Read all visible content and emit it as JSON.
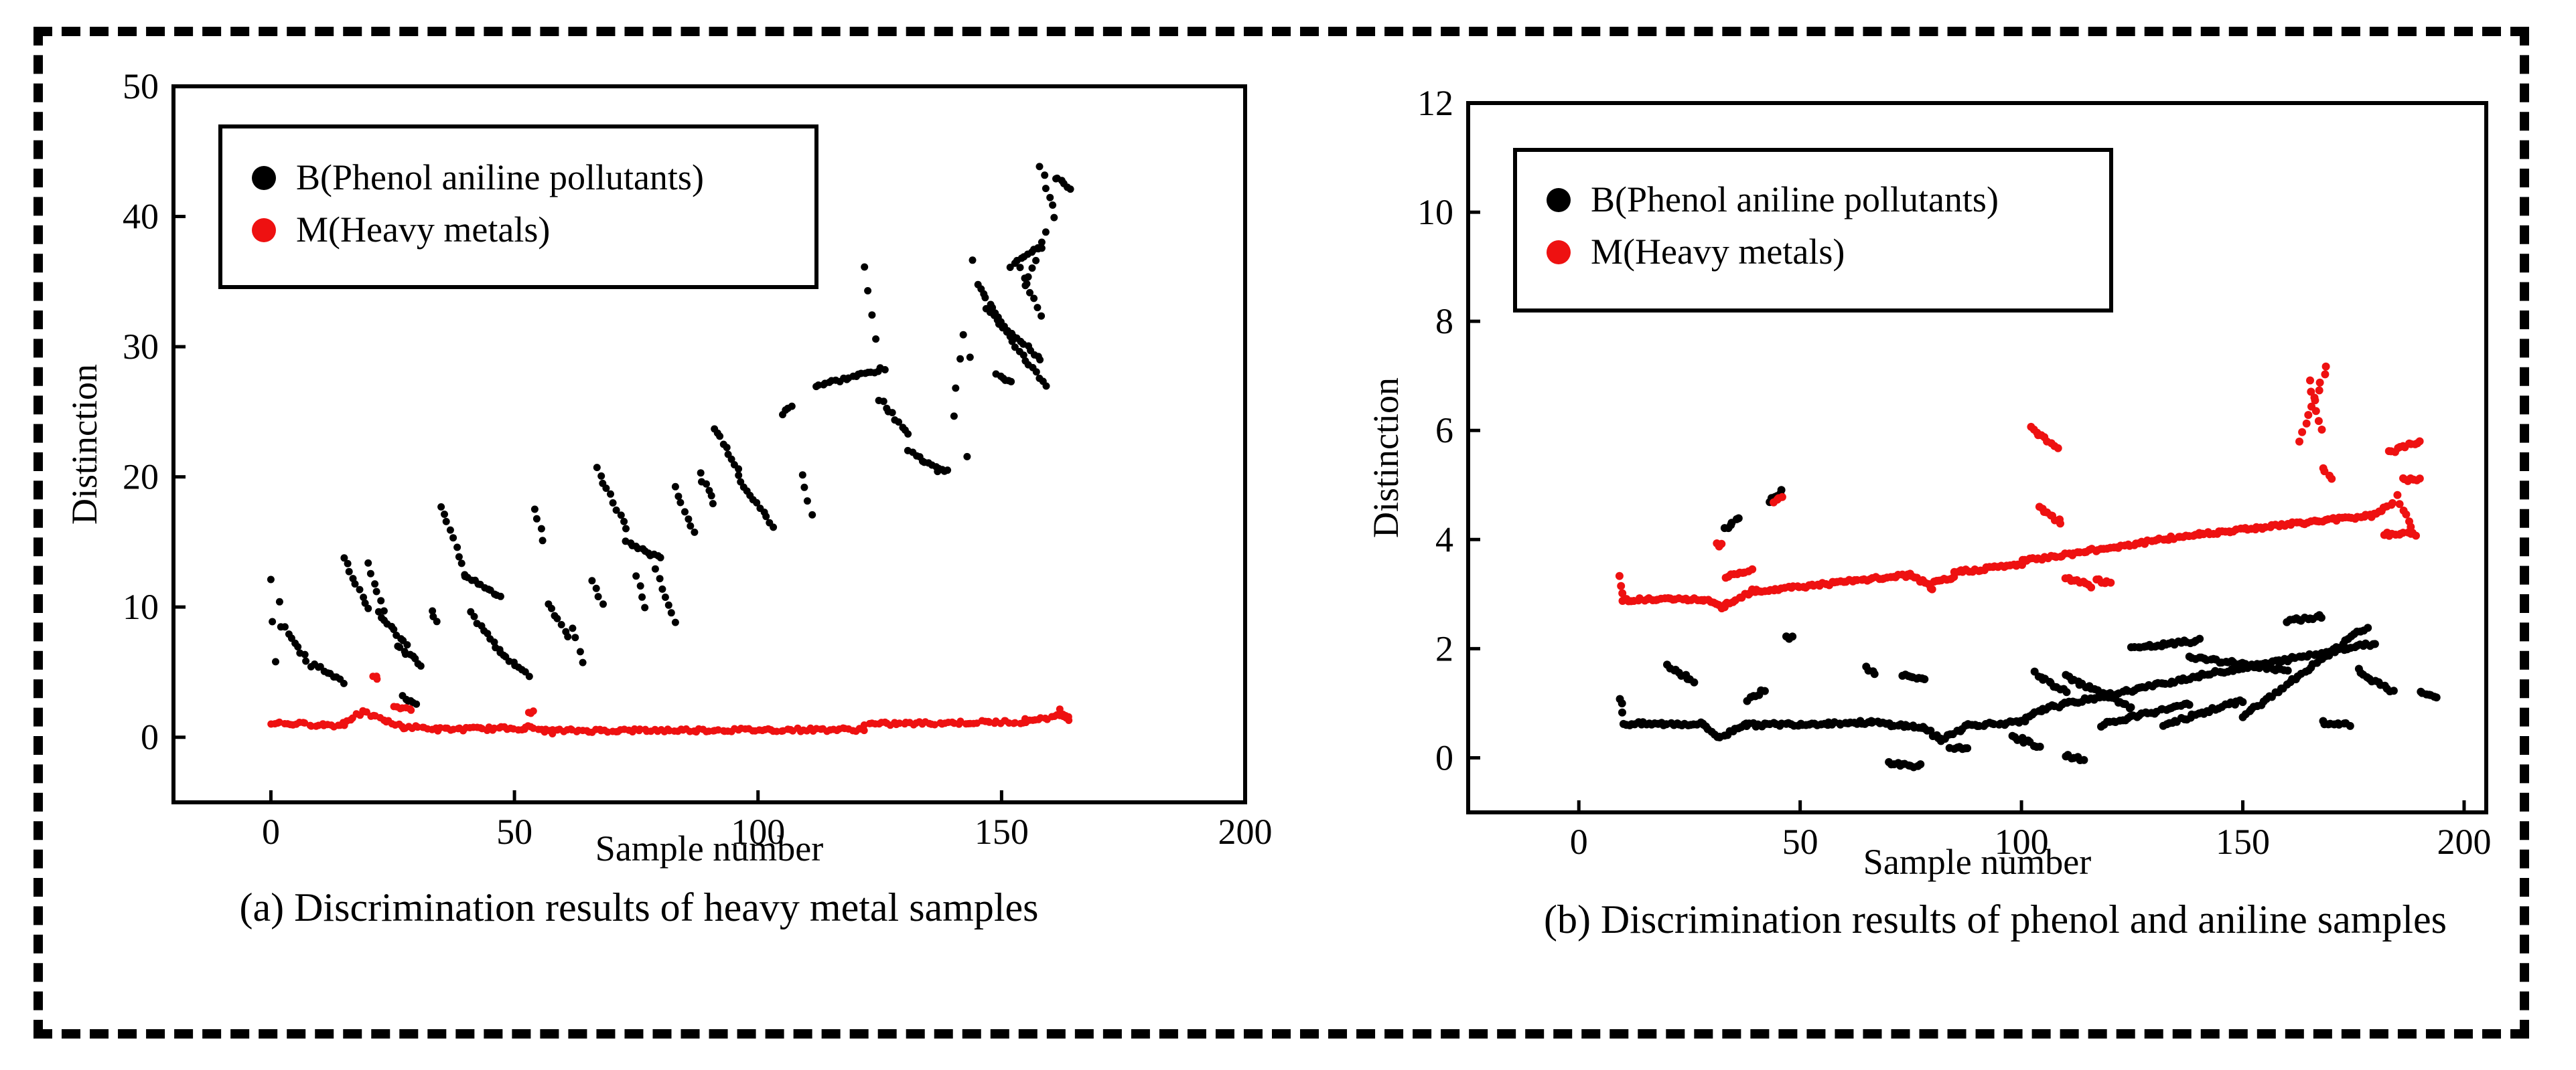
{
  "chart_data": [
    {
      "type": "scatter",
      "title": "",
      "caption": "(a) Discrimination results of heavy metal samples",
      "xlabel": "Sample number",
      "ylabel": "Distinction",
      "xlim": [
        -20,
        200
      ],
      "ylim": [
        -5,
        50
      ],
      "xticks": [
        "0",
        "50",
        "100",
        "150",
        "200"
      ],
      "yticks": [
        "0",
        "10",
        "20",
        "30",
        "40",
        "50"
      ],
      "legend": {
        "position": "top-left",
        "entries": [
          "B(Phenol aniline pollutants)",
          "M(Heavy metals)"
        ]
      },
      "series": [
        {
          "name": "B(Phenol aniline pollutants)",
          "color": "#000000",
          "segments": [
            [
              0,
              1,
              12.1,
              5.8
            ],
            [
              2,
              2,
              10.3,
              8.5
            ],
            [
              3,
              8,
              8.4,
              5.5
            ],
            [
              9,
              15,
              5.6,
              4.2
            ],
            [
              15,
              20,
              13.8,
              9.8
            ],
            [
              20,
              23,
              13.4,
              9.6
            ],
            [
              22,
              28,
              9.6,
              7.0
            ],
            [
              26,
              31,
              7.0,
              5.6
            ],
            [
              27,
              30,
              3.1,
              2.6
            ],
            [
              33,
              34,
              9.8,
              9.0
            ],
            [
              35,
              40,
              17.8,
              12.6
            ],
            [
              40,
              47,
              12.4,
              10.7
            ],
            [
              41,
              47,
              9.5,
              6.6
            ],
            [
              47,
              53,
              6.6,
              4.7
            ],
            [
              54,
              56,
              17.6,
              15.2
            ],
            [
              57,
              61,
              10.3,
              7.8
            ],
            [
              62,
              64,
              8.5,
              5.8
            ],
            [
              66,
              68,
              12.1,
              10.1
            ],
            [
              67,
              73,
              20.6,
              16.0
            ],
            [
              73,
              80,
              15.0,
              13.7
            ],
            [
              75,
              77,
              12.5,
              10.0
            ],
            [
              79,
              83,
              12.8,
              8.9
            ],
            [
              83,
              87,
              19.2,
              15.7
            ],
            [
              88,
              91,
              20.2,
              18.0
            ],
            [
              91,
              96,
              23.8,
              20.6
            ],
            [
              96,
              103,
              20.0,
              16.2
            ],
            [
              105,
              107,
              24.8,
              25.5
            ],
            [
              109,
              111,
              20.1,
              17.2
            ],
            [
              112,
              126,
              27.0,
              28.3
            ],
            [
              122,
              124,
              36.0,
              30.7
            ],
            [
              125,
              131,
              26.0,
              23.3
            ],
            [
              131,
              137,
              22.0,
              20.5
            ],
            [
              137,
              139,
              20.7,
              20.4
            ],
            [
              140,
              142,
              24.8,
              31.0
            ],
            [
              143,
              144,
              21.5,
              36.7
            ],
            [
              145,
              150,
              34.7,
              32.0
            ],
            [
              150,
              158,
              31.8,
              29.0
            ],
            [
              152,
              158,
              36.2,
              37.7
            ],
            [
              158,
              161,
              43.8,
              40.0
            ],
            [
              161,
              164,
              43.0,
              42.2
            ],
            [
              154,
              158,
              36.0,
              32.4
            ],
            [
              155,
              159,
              34.8,
              38.7
            ],
            [
              149,
              152,
              28.0,
              27.2
            ],
            [
              147,
              159,
              33.0,
              27.0
            ]
          ]
        },
        {
          "name": "M(Heavy metals)",
          "color": "#ee1111",
          "segments": [
            [
              0,
              15,
              1.1,
              0.9
            ],
            [
              15,
              19,
              1.2,
              1.9
            ],
            [
              19,
              27,
              1.9,
              0.8
            ],
            [
              27,
              33,
              0.8,
              0.7
            ],
            [
              33,
              52,
              0.6,
              0.7
            ],
            [
              52,
              58,
              0.8,
              0.4
            ],
            [
              58,
              122,
              0.5,
              0.6
            ],
            [
              122,
              155,
              1.0,
              1.2
            ],
            [
              155,
              164,
              1.3,
              1.7
            ],
            [
              21,
              22,
              4.6,
              4.6
            ],
            [
              25,
              29,
              2.4,
              2.2
            ],
            [
              53,
              54,
              1.9,
              1.9
            ],
            [
              162,
              164,
              2.1,
              1.3
            ]
          ]
        }
      ]
    },
    {
      "type": "scatter",
      "title": "",
      "caption": "(b) Discrimination results of phenol and aniline samples",
      "xlabel": "Sample number",
      "ylabel": "Distinction",
      "xlim": [
        -25,
        205
      ],
      "ylim": [
        -1,
        12
      ],
      "xticks": [
        "0",
        "50",
        "100",
        "150",
        "200"
      ],
      "yticks": [
        "0",
        "2",
        "4",
        "6",
        "8",
        "10",
        "12"
      ],
      "legend": {
        "position": "top-left",
        "entries": [
          "B(Phenol aniline pollutants)",
          "M(Heavy metals)"
        ]
      },
      "series": [
        {
          "name": "B(Phenol aniline pollutants)",
          "color": "#000000",
          "segments": [
            [
              10,
              28,
              0.62,
              0.62
            ],
            [
              28,
              32,
              0.62,
              0.35
            ],
            [
              32,
              38,
              0.38,
              0.65
            ],
            [
              38,
              66,
              0.6,
              0.65
            ],
            [
              66,
              78,
              0.65,
              0.55
            ],
            [
              78,
              82,
              0.55,
              0.3
            ],
            [
              82,
              88,
              0.35,
              0.6
            ],
            [
              88,
              100,
              0.6,
              0.65
            ],
            [
              100,
              105,
              0.65,
              0.9
            ],
            [
              105,
              140,
              0.9,
              1.5
            ],
            [
              140,
              180,
              1.5,
              2.1
            ],
            [
              9,
              10,
              1.1,
              0.85
            ],
            [
              20,
              26,
              1.7,
              1.4
            ],
            [
              33,
              36,
              4.2,
              4.4
            ],
            [
              38,
              42,
              1.05,
              1.25
            ],
            [
              43,
              46,
              4.7,
              4.9
            ],
            [
              47,
              48,
              2.2,
              2.2
            ],
            [
              65,
              67,
              1.65,
              1.55
            ],
            [
              73,
              78,
              1.5,
              1.45
            ],
            [
              70,
              77,
              -0.1,
              -0.15
            ],
            [
              84,
              88,
              0.15,
              0.2
            ],
            [
              98,
              104,
              0.4,
              0.2
            ],
            [
              103,
              110,
              1.55,
              1.2
            ],
            [
              110,
              114,
              0.05,
              -0.05
            ],
            [
              110,
              125,
              1.5,
              0.9
            ],
            [
              118,
              138,
              0.6,
              1.0
            ],
            [
              125,
              140,
              2.0,
              2.15
            ],
            [
              132,
              150,
              0.6,
              1.05
            ],
            [
              138,
              160,
              1.85,
              1.6
            ],
            [
              150,
              178,
              0.75,
              2.4
            ],
            [
              160,
              168,
              2.5,
              2.6
            ],
            [
              168,
              174,
              0.65,
              0.6
            ],
            [
              176,
              184,
              1.6,
              1.2
            ],
            [
              190,
              194,
              1.2,
              1.1
            ]
          ]
        },
        {
          "name": "M(Heavy metals)",
          "color": "#ee1111",
          "segments": [
            [
              10,
              28,
              2.9,
              2.9
            ],
            [
              28,
              33,
              2.9,
              2.75
            ],
            [
              33,
              40,
              2.8,
              3.1
            ],
            [
              40,
              75,
              3.05,
              3.35
            ],
            [
              75,
              80,
              3.35,
              3.1
            ],
            [
              80,
              85,
              3.2,
              3.3
            ],
            [
              85,
              100,
              3.4,
              3.55
            ],
            [
              100,
              140,
              3.6,
              4.1
            ],
            [
              140,
              180,
              4.1,
              4.45
            ],
            [
              180,
              184,
              4.5,
              4.65
            ],
            [
              9,
              10,
              3.35,
              3.0
            ],
            [
              33,
              39,
              3.3,
              3.45
            ],
            [
              31,
              32,
              3.9,
              3.9
            ],
            [
              44,
              46,
              4.7,
              4.8
            ],
            [
              102,
              108,
              6.05,
              5.7
            ],
            [
              104,
              109,
              4.6,
              4.3
            ],
            [
              110,
              116,
              3.3,
              3.15
            ],
            [
              117,
              120,
              3.25,
              3.2
            ],
            [
              163,
              169,
              5.8,
              7.2
            ],
            [
              165,
              168,
              6.9,
              6.0
            ],
            [
              168,
              170,
              5.3,
              5.1
            ],
            [
              183,
              190,
              5.6,
              5.8
            ],
            [
              182,
              189,
              4.1,
              4.1
            ],
            [
              186,
              190,
              5.1,
              5.1
            ],
            [
              185,
              188,
              4.8,
              4.2
            ]
          ]
        }
      ]
    }
  ]
}
